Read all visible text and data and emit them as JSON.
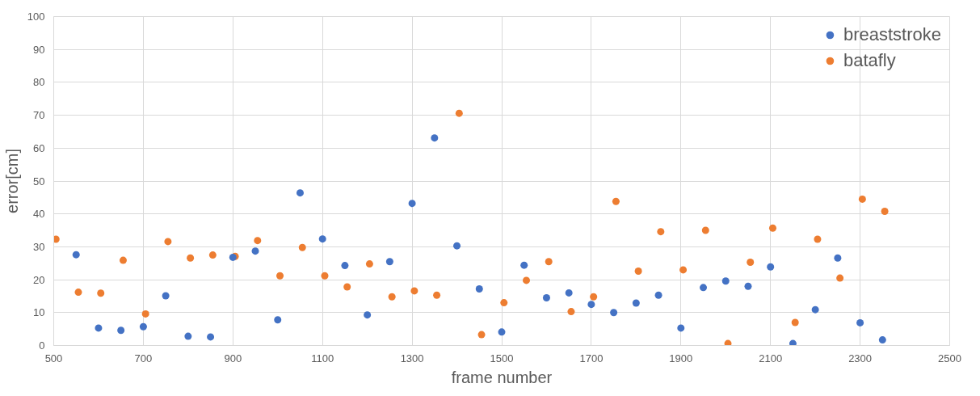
{
  "chart_data": {
    "type": "scatter",
    "xlabel": "frame number",
    "ylabel": "error[cm]",
    "xlim": [
      500,
      2500
    ],
    "xticks": [
      500,
      700,
      900,
      1100,
      1300,
      1500,
      1700,
      1900,
      2100,
      2300,
      2500
    ],
    "ylim": [
      0,
      100
    ],
    "yticks": [
      0,
      10,
      20,
      30,
      40,
      50,
      60,
      70,
      80,
      90,
      100
    ],
    "grid": true,
    "legend": "top right",
    "marker": "circle",
    "series": [
      {
        "name": "breaststroke",
        "color": "#4472c4",
        "x": [
          550,
          600,
          650,
          700,
          750,
          800,
          850,
          900,
          950,
          1000,
          1050,
          1100,
          1150,
          1200,
          1250,
          1300,
          1350,
          1400,
          1450,
          1500,
          1550,
          1600,
          1650,
          1700,
          1750,
          1800,
          1850,
          1900,
          1950,
          2000,
          2050,
          2100,
          2150,
          2200,
          2250,
          2300,
          2350
        ],
        "values": [
          27.6,
          5.3,
          4.6,
          5.7,
          15.1,
          2.8,
          2.6,
          26.8,
          28.7,
          7.8,
          46.4,
          32.4,
          24.3,
          9.3,
          25.5,
          43.2,
          63.1,
          30.3,
          17.2,
          4.1,
          24.4,
          14.5,
          16.0,
          12.5,
          10.0,
          12.9,
          15.3,
          5.3,
          17.6,
          19.6,
          18.0,
          23.9,
          0.6,
          10.9,
          26.6,
          6.9,
          1.7
        ]
      },
      {
        "name": "batafly",
        "color": "#ed7d31",
        "x": [
          505,
          555,
          605,
          655,
          705,
          755,
          805,
          855,
          905,
          955,
          1005,
          1055,
          1105,
          1155,
          1205,
          1255,
          1305,
          1355,
          1405,
          1455,
          1505,
          1555,
          1605,
          1655,
          1705,
          1755,
          1805,
          1855,
          1905,
          1955,
          2005,
          2055,
          2105,
          2155,
          2205,
          2255,
          2305,
          2355
        ],
        "values": [
          32.3,
          16.2,
          15.9,
          25.9,
          9.6,
          31.6,
          26.6,
          27.5,
          27.1,
          31.9,
          21.2,
          29.8,
          21.2,
          17.8,
          24.8,
          14.8,
          16.6,
          15.3,
          70.6,
          3.3,
          13.0,
          19.8,
          25.5,
          10.3,
          14.8,
          43.8,
          22.6,
          34.6,
          23.0,
          35.0,
          0.6,
          25.3,
          35.7,
          7.0,
          32.3,
          20.5,
          44.5,
          40.8
        ]
      }
    ]
  }
}
